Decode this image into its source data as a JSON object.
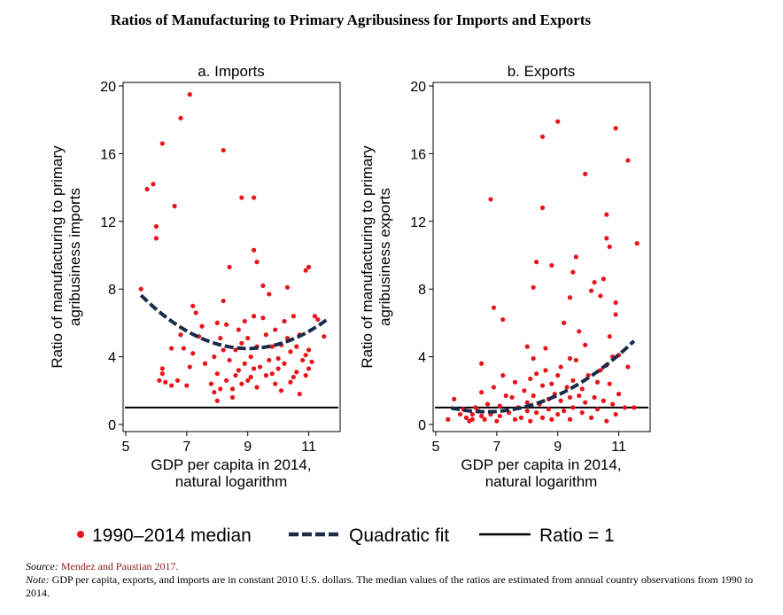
{
  "figure_title": "Ratios of Manufacturing to Primary Agribusiness for Imports and Exports",
  "legend": {
    "points_label": "1990–2014 median",
    "fit_label": "Quadratic fit",
    "ratio_label": "Ratio = 1"
  },
  "colors": {
    "points": "#e8141a",
    "fit": "#1a2b4a",
    "ratio_line": "#000000",
    "source_link": "#8b1a1a"
  },
  "source": {
    "label": "Source:",
    "text": "Mendez and Paustian 2017."
  },
  "note": {
    "label": "Note:",
    "text": "GDP per capita, exports, and imports are in constant 2010 U.S. dollars. The median values of the ratios are estimated from annual country observations from 1990 to 2014."
  },
  "chart_data": [
    {
      "type": "scatter",
      "title": "a. Imports",
      "xlabel": [
        "GDP per capita in 2014,",
        "natural logarithm"
      ],
      "ylabel": [
        "Ratio of manufacturing to primary",
        "agribusiness imports"
      ],
      "xlim": [
        5,
        12
      ],
      "ylim": [
        0,
        20
      ],
      "xticks": [
        "5",
        "7",
        "9",
        "11"
      ],
      "yticks": [
        "0",
        "4",
        "8",
        "12",
        "16",
        "20"
      ],
      "reference_y": 1,
      "fit": {
        "x_range": [
          5.5,
          11.6
        ],
        "coef": [
          0.255,
          -4.596,
          25.2
        ]
      },
      "points": [
        [
          5.5,
          8.0
        ],
        [
          5.7,
          13.9
        ],
        [
          5.9,
          14.2
        ],
        [
          6.0,
          11.7
        ],
        [
          6.0,
          11.0
        ],
        [
          6.2,
          16.6
        ],
        [
          6.6,
          12.9
        ],
        [
          6.8,
          18.1
        ],
        [
          7.1,
          19.5
        ],
        [
          8.2,
          16.2
        ],
        [
          8.8,
          13.4
        ],
        [
          9.2,
          13.4
        ],
        [
          8.4,
          9.3
        ],
        [
          9.2,
          10.3
        ],
        [
          9.3,
          9.6
        ],
        [
          11.0,
          9.3
        ],
        [
          10.9,
          9.1
        ],
        [
          6.1,
          2.6
        ],
        [
          6.2,
          3.0
        ],
        [
          6.3,
          2.5
        ],
        [
          6.2,
          3.3
        ],
        [
          6.5,
          4.5
        ],
        [
          6.5,
          2.3
        ],
        [
          6.9,
          4.5
        ],
        [
          6.7,
          2.6
        ],
        [
          7.0,
          2.3
        ],
        [
          7.1,
          3.4
        ],
        [
          7.2,
          7.0
        ],
        [
          7.3,
          6.6
        ],
        [
          7.2,
          4.2
        ],
        [
          7.4,
          5.2
        ],
        [
          7.6,
          3.6
        ],
        [
          7.8,
          2.4
        ],
        [
          7.9,
          4.0
        ],
        [
          7.9,
          1.9
        ],
        [
          8.0,
          1.4
        ],
        [
          8.0,
          3.0
        ],
        [
          8.1,
          2.1
        ],
        [
          8.1,
          5.1
        ],
        [
          8.2,
          4.4
        ],
        [
          8.2,
          7.3
        ],
        [
          8.3,
          5.9
        ],
        [
          8.3,
          2.6
        ],
        [
          8.4,
          3.8
        ],
        [
          8.5,
          1.6
        ],
        [
          8.6,
          2.9
        ],
        [
          8.6,
          4.4
        ],
        [
          8.7,
          3.2
        ],
        [
          8.7,
          5.6
        ],
        [
          8.8,
          2.4
        ],
        [
          8.8,
          4.8
        ],
        [
          8.9,
          6.1
        ],
        [
          8.9,
          3.6
        ],
        [
          9.0,
          2.6
        ],
        [
          9.0,
          5.1
        ],
        [
          9.1,
          4.0
        ],
        [
          9.1,
          2.8
        ],
        [
          9.2,
          3.3
        ],
        [
          9.2,
          6.4
        ],
        [
          9.3,
          2.2
        ],
        [
          9.3,
          4.6
        ],
        [
          9.4,
          3.4
        ],
        [
          9.5,
          6.3
        ],
        [
          9.5,
          8.2
        ],
        [
          9.6,
          5.3
        ],
        [
          9.6,
          2.9
        ],
        [
          9.7,
          7.7
        ],
        [
          9.7,
          3.8
        ],
        [
          9.8,
          4.6
        ],
        [
          9.9,
          5.6
        ],
        [
          9.9,
          2.4
        ],
        [
          10.0,
          3.3
        ],
        [
          10.1,
          4.7
        ],
        [
          10.1,
          2.0
        ],
        [
          10.2,
          6.1
        ],
        [
          10.2,
          3.6
        ],
        [
          10.3,
          5.1
        ],
        [
          10.3,
          8.1
        ],
        [
          10.4,
          4.3
        ],
        [
          10.5,
          2.8
        ],
        [
          10.5,
          6.4
        ],
        [
          10.6,
          3.1
        ],
        [
          10.6,
          4.6
        ],
        [
          10.7,
          1.8
        ],
        [
          10.7,
          5.3
        ],
        [
          10.8,
          3.8
        ],
        [
          10.9,
          2.9
        ],
        [
          10.9,
          4.1
        ],
        [
          11.0,
          3.3
        ],
        [
          11.1,
          3.7
        ],
        [
          11.2,
          6.4
        ],
        [
          11.3,
          6.2
        ],
        [
          11.5,
          5.2
        ],
        [
          6.8,
          5.3
        ],
        [
          7.5,
          5.8
        ],
        [
          8.0,
          6.0
        ],
        [
          8.5,
          2.1
        ],
        [
          9.8,
          3.0
        ],
        [
          10.0,
          3.9
        ],
        [
          10.4,
          2.5
        ],
        [
          11.0,
          4.4
        ]
      ]
    },
    {
      "type": "scatter",
      "title": "b. Exports",
      "xlabel": [
        "GDP per capita in 2014,",
        "natural logarithm"
      ],
      "ylabel": [
        "Ratio of manufacturing to primary",
        "agribusiness exports"
      ],
      "xlim": [
        5,
        12
      ],
      "ylim": [
        0,
        20
      ],
      "xticks": [
        "5",
        "7",
        "9",
        "11"
      ],
      "yticks": [
        "0",
        "4",
        "8",
        "12",
        "16",
        "20"
      ],
      "reference_y": 1,
      "fit": {
        "x_range": [
          5.5,
          11.5
        ],
        "coef": [
          0.177,
          -2.35,
          8.55
        ]
      },
      "points": [
        [
          6.8,
          13.3
        ],
        [
          8.5,
          17.0
        ],
        [
          9.0,
          17.9
        ],
        [
          8.5,
          12.8
        ],
        [
          9.9,
          14.8
        ],
        [
          10.9,
          17.5
        ],
        [
          11.3,
          15.6
        ],
        [
          11.6,
          10.7
        ],
        [
          10.6,
          12.4
        ],
        [
          10.6,
          11.0
        ],
        [
          10.7,
          10.5
        ],
        [
          8.3,
          9.6
        ],
        [
          8.8,
          9.4
        ],
        [
          9.6,
          9.9
        ],
        [
          9.5,
          9.0
        ],
        [
          8.2,
          8.1
        ],
        [
          10.2,
          8.4
        ],
        [
          10.5,
          8.6
        ],
        [
          10.1,
          7.9
        ],
        [
          9.4,
          7.5
        ],
        [
          10.4,
          7.6
        ],
        [
          10.9,
          7.2
        ],
        [
          6.9,
          6.9
        ],
        [
          7.2,
          6.2
        ],
        [
          9.2,
          6.0
        ],
        [
          9.7,
          5.5
        ],
        [
          10.7,
          5.2
        ],
        [
          10.9,
          6.5
        ],
        [
          10.8,
          4.0
        ],
        [
          11.0,
          4.1
        ],
        [
          10.6,
          3.5
        ],
        [
          9.9,
          4.7
        ],
        [
          6.5,
          3.6
        ],
        [
          8.0,
          4.6
        ],
        [
          8.6,
          4.5
        ],
        [
          5.4,
          0.3
        ],
        [
          5.6,
          1.5
        ],
        [
          5.8,
          0.6
        ],
        [
          5.9,
          0.9
        ],
        [
          6.0,
          0.4
        ],
        [
          6.1,
          0.2
        ],
        [
          6.2,
          0.6
        ],
        [
          6.2,
          0.3
        ],
        [
          6.3,
          1.0
        ],
        [
          6.4,
          0.8
        ],
        [
          6.5,
          0.5
        ],
        [
          6.5,
          1.9
        ],
        [
          6.6,
          0.3
        ],
        [
          6.7,
          1.2
        ],
        [
          6.8,
          0.6
        ],
        [
          6.9,
          2.2
        ],
        [
          7.0,
          0.2
        ],
        [
          7.1,
          1.1
        ],
        [
          7.1,
          0.5
        ],
        [
          7.2,
          2.9
        ],
        [
          7.3,
          1.7
        ],
        [
          7.4,
          0.7
        ],
        [
          7.5,
          1.6
        ],
        [
          7.6,
          0.3
        ],
        [
          7.6,
          2.5
        ],
        [
          7.7,
          1.0
        ],
        [
          7.8,
          0.4
        ],
        [
          7.9,
          2.0
        ],
        [
          8.0,
          1.3
        ],
        [
          8.0,
          0.8
        ],
        [
          8.1,
          2.7
        ],
        [
          8.1,
          0.2
        ],
        [
          8.2,
          1.7
        ],
        [
          8.3,
          3.0
        ],
        [
          8.3,
          0.7
        ],
        [
          8.4,
          1.2
        ],
        [
          8.5,
          2.3
        ],
        [
          8.5,
          0.4
        ],
        [
          8.6,
          3.2
        ],
        [
          8.7,
          1.5
        ],
        [
          8.7,
          0.9
        ],
        [
          8.8,
          2.4
        ],
        [
          8.8,
          0.3
        ],
        [
          8.9,
          1.8
        ],
        [
          9.0,
          2.9
        ],
        [
          9.0,
          0.6
        ],
        [
          9.1,
          1.4
        ],
        [
          9.1,
          3.4
        ],
        [
          9.2,
          0.8
        ],
        [
          9.3,
          2.2
        ],
        [
          9.4,
          1.6
        ],
        [
          9.4,
          0.3
        ],
        [
          9.5,
          2.6
        ],
        [
          9.5,
          1.0
        ],
        [
          9.6,
          3.8
        ],
        [
          9.7,
          1.7
        ],
        [
          9.8,
          0.7
        ],
        [
          9.8,
          2.1
        ],
        [
          9.9,
          1.3
        ],
        [
          10.0,
          2.9
        ],
        [
          10.1,
          0.4
        ],
        [
          10.2,
          1.6
        ],
        [
          10.3,
          2.5
        ],
        [
          10.3,
          0.9
        ],
        [
          10.4,
          3.2
        ],
        [
          10.5,
          1.4
        ],
        [
          10.6,
          0.2
        ],
        [
          10.7,
          2.4
        ],
        [
          10.8,
          1.2
        ],
        [
          10.9,
          0.6
        ],
        [
          11.0,
          1.8
        ],
        [
          11.2,
          1.0
        ],
        [
          11.5,
          1.0
        ],
        [
          11.3,
          3.4
        ],
        [
          9.4,
          3.9
        ],
        [
          8.2,
          3.9
        ]
      ]
    }
  ]
}
